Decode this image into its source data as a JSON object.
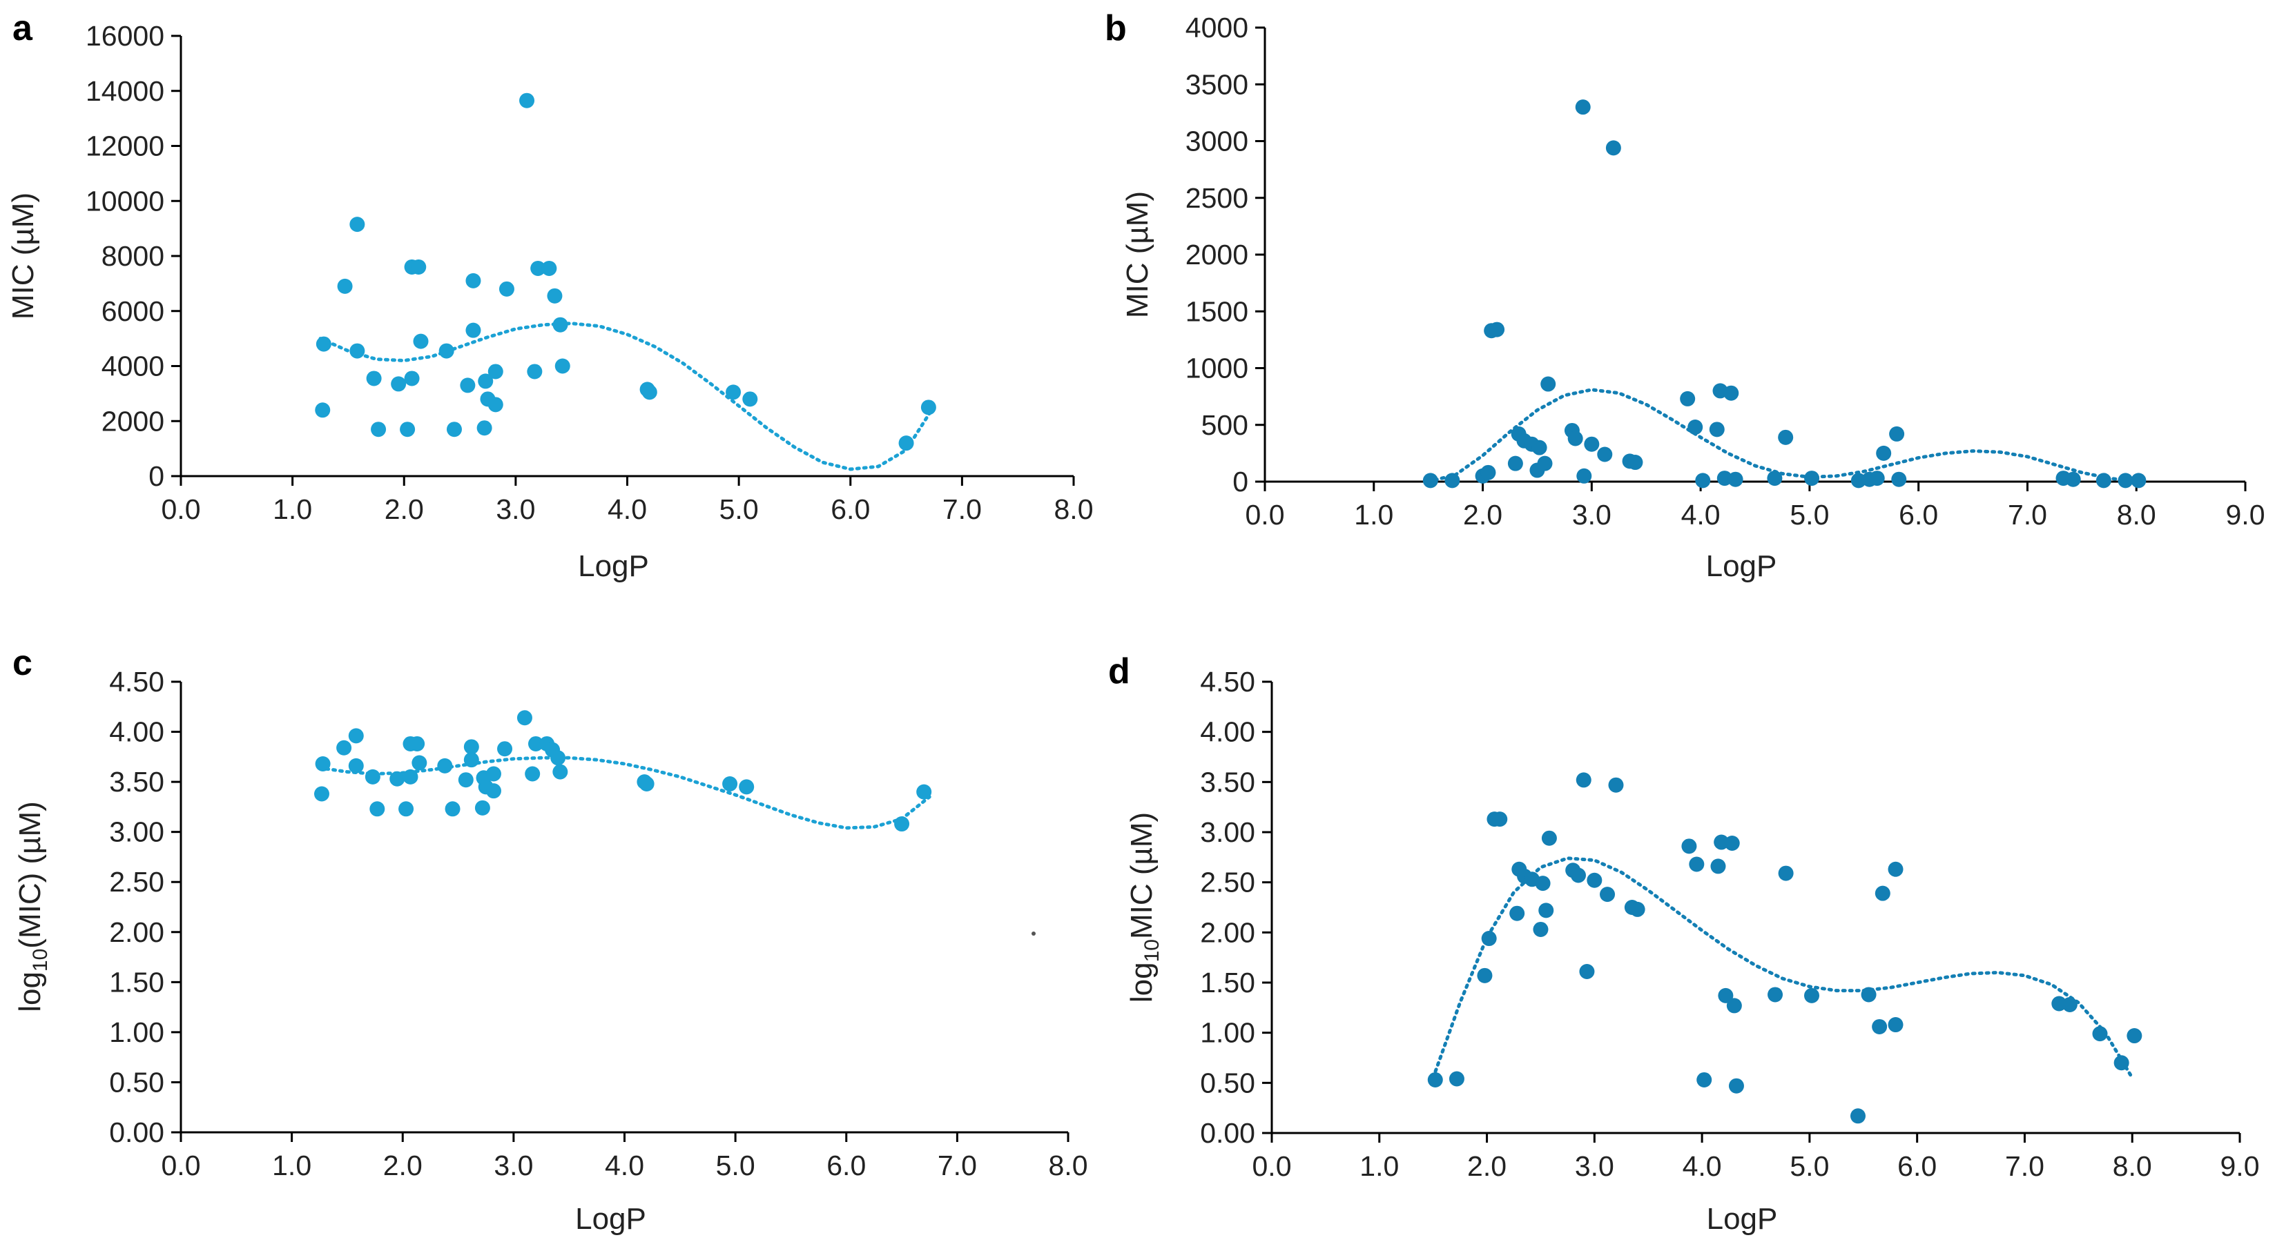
{
  "figure": {
    "colors": {
      "points_ac": "#1ba1d4",
      "points_bd": "#137fb4",
      "axis": "#000000"
    }
  },
  "chart_data": [
    {
      "panel": "a",
      "type": "scatter",
      "xlabel": "LogP",
      "ylabel": "MIC (µM)",
      "xlim": [
        0,
        8
      ],
      "ylim": [
        0,
        16000
      ],
      "xticks": [
        0,
        1,
        2,
        3,
        4,
        5,
        6,
        7,
        8
      ],
      "yticks": [
        0,
        2000,
        4000,
        6000,
        8000,
        10000,
        12000,
        14000,
        16000
      ],
      "xtick_labels": [
        "0.0",
        "1.0",
        "2.0",
        "3.0",
        "4.0",
        "5.0",
        "6.0",
        "7.0",
        "8.0"
      ],
      "ytick_labels": [
        "0",
        "2000",
        "4000",
        "6000",
        "8000",
        "10000",
        "12000",
        "14000",
        "16000"
      ],
      "points": [
        [
          1.28,
          4800
        ],
        [
          1.27,
          2400
        ],
        [
          1.47,
          6900
        ],
        [
          1.58,
          9150
        ],
        [
          1.58,
          4550
        ],
        [
          1.73,
          3550
        ],
        [
          1.77,
          1700
        ],
        [
          1.95,
          3350
        ],
        [
          2.03,
          1700
        ],
        [
          2.07,
          3550
        ],
        [
          2.07,
          7600
        ],
        [
          2.13,
          7600
        ],
        [
          2.15,
          4900
        ],
        [
          2.38,
          4550
        ],
        [
          2.45,
          1700
        ],
        [
          2.57,
          3300
        ],
        [
          2.62,
          7100
        ],
        [
          2.62,
          5300
        ],
        [
          2.72,
          1750
        ],
        [
          2.73,
          3450
        ],
        [
          2.75,
          2800
        ],
        [
          2.82,
          2600
        ],
        [
          2.82,
          3800
        ],
        [
          2.92,
          6800
        ],
        [
          3.1,
          13650
        ],
        [
          3.17,
          3800
        ],
        [
          3.2,
          7550
        ],
        [
          3.3,
          7550
        ],
        [
          3.35,
          6550
        ],
        [
          3.4,
          5500
        ],
        [
          3.42,
          4000
        ],
        [
          4.18,
          3150
        ],
        [
          4.2,
          3050
        ],
        [
          4.95,
          3050
        ],
        [
          5.1,
          2800
        ],
        [
          6.5,
          1200
        ],
        [
          6.7,
          2500
        ]
      ],
      "trendline": {
        "type": "polynomial",
        "x": [
          1.25,
          1.5,
          1.75,
          2.0,
          2.25,
          2.5,
          2.75,
          3.0,
          3.25,
          3.5,
          3.75,
          4.0,
          4.25,
          4.5,
          4.75,
          5.0,
          5.25,
          5.5,
          5.75,
          6.0,
          6.25,
          6.5,
          6.75
        ],
        "y": [
          5000,
          4550,
          4250,
          4200,
          4350,
          4700,
          5050,
          5350,
          5500,
          5550,
          5450,
          5150,
          4700,
          4100,
          3350,
          2550,
          1750,
          1050,
          500,
          250,
          350,
          950,
          2550
        ]
      }
    },
    {
      "panel": "b",
      "type": "scatter",
      "xlabel": "LogP",
      "ylabel": "MIC (µM)",
      "xlim": [
        0,
        9
      ],
      "ylim": [
        0,
        4000
      ],
      "xticks": [
        0,
        1,
        2,
        3,
        4,
        5,
        6,
        7,
        8,
        9
      ],
      "yticks": [
        0,
        500,
        1000,
        1500,
        2000,
        2500,
        3000,
        3500,
        4000
      ],
      "xtick_labels": [
        "0.0",
        "1.0",
        "2.0",
        "3.0",
        "4.0",
        "5.0",
        "6.0",
        "7.0",
        "8.0",
        "9.0"
      ],
      "ytick_labels": [
        "0",
        "500",
        "1000",
        "1500",
        "2000",
        "2500",
        "3000",
        "3500",
        "4000"
      ],
      "points": [
        [
          1.52,
          10
        ],
        [
          1.72,
          10
        ],
        [
          2.0,
          50
        ],
        [
          2.05,
          80
        ],
        [
          2.08,
          1330
        ],
        [
          2.13,
          1340
        ],
        [
          2.3,
          160
        ],
        [
          2.33,
          420
        ],
        [
          2.38,
          360
        ],
        [
          2.45,
          330
        ],
        [
          2.5,
          100
        ],
        [
          2.52,
          300
        ],
        [
          2.57,
          160
        ],
        [
          2.6,
          860
        ],
        [
          2.82,
          450
        ],
        [
          2.85,
          380
        ],
        [
          2.92,
          3300
        ],
        [
          2.93,
          50
        ],
        [
          3.0,
          330
        ],
        [
          3.12,
          240
        ],
        [
          3.2,
          2940
        ],
        [
          3.35,
          180
        ],
        [
          3.4,
          170
        ],
        [
          3.88,
          730
        ],
        [
          3.95,
          480
        ],
        [
          4.02,
          10
        ],
        [
          4.15,
          460
        ],
        [
          4.18,
          800
        ],
        [
          4.22,
          30
        ],
        [
          4.28,
          780
        ],
        [
          4.32,
          20
        ],
        [
          4.68,
          30
        ],
        [
          4.78,
          390
        ],
        [
          5.02,
          30
        ],
        [
          5.45,
          10
        ],
        [
          5.55,
          20
        ],
        [
          5.62,
          30
        ],
        [
          5.68,
          250
        ],
        [
          5.8,
          420
        ],
        [
          5.82,
          20
        ],
        [
          7.33,
          30
        ],
        [
          7.42,
          20
        ],
        [
          7.7,
          10
        ],
        [
          7.9,
          10
        ],
        [
          8.02,
          10
        ]
      ],
      "trendline": {
        "type": "polynomial",
        "x": [
          1.5,
          1.75,
          2.0,
          2.25,
          2.5,
          2.75,
          3.0,
          3.25,
          3.5,
          3.75,
          4.0,
          4.25,
          4.5,
          4.75,
          5.0,
          5.25,
          5.5,
          5.75,
          6.0,
          6.25,
          6.5,
          6.75,
          7.0,
          7.25,
          7.5,
          7.75,
          8.0
        ],
        "y": [
          0,
          60,
          230,
          440,
          630,
          760,
          810,
          780,
          680,
          540,
          390,
          250,
          140,
          70,
          40,
          50,
          90,
          150,
          210,
          250,
          270,
          260,
          220,
          150,
          80,
          30,
          0
        ]
      }
    },
    {
      "panel": "c",
      "type": "scatter",
      "xlabel": "LogP",
      "ylabel": "log10(MIC) (µM)",
      "xlim": [
        0,
        8
      ],
      "ylim": [
        0,
        4.5
      ],
      "xticks": [
        0,
        1,
        2,
        3,
        4,
        5,
        6,
        7,
        8
      ],
      "yticks": [
        0,
        0.5,
        1.0,
        1.5,
        2.0,
        2.5,
        3.0,
        3.5,
        4.0,
        4.5
      ],
      "xtick_labels": [
        "0.0",
        "1.0",
        "2.0",
        "3.0",
        "4.0",
        "5.0",
        "6.0",
        "7.0",
        "8.0"
      ],
      "ytick_labels": [
        "0.00",
        "0.50",
        "1.00",
        "1.50",
        "2.00",
        "2.50",
        "3.00",
        "3.50",
        "4.00",
        "4.50"
      ],
      "points": [
        [
          1.28,
          3.68
        ],
        [
          1.27,
          3.38
        ],
        [
          1.47,
          3.84
        ],
        [
          1.58,
          3.96
        ],
        [
          1.58,
          3.66
        ],
        [
          1.73,
          3.55
        ],
        [
          1.77,
          3.23
        ],
        [
          1.95,
          3.53
        ],
        [
          2.03,
          3.23
        ],
        [
          2.07,
          3.55
        ],
        [
          2.07,
          3.88
        ],
        [
          2.13,
          3.88
        ],
        [
          2.15,
          3.69
        ],
        [
          2.38,
          3.66
        ],
        [
          2.45,
          3.23
        ],
        [
          2.57,
          3.52
        ],
        [
          2.62,
          3.85
        ],
        [
          2.62,
          3.72
        ],
        [
          2.72,
          3.24
        ],
        [
          2.73,
          3.54
        ],
        [
          2.75,
          3.45
        ],
        [
          2.82,
          3.41
        ],
        [
          2.82,
          3.58
        ],
        [
          2.92,
          3.83
        ],
        [
          3.1,
          4.14
        ],
        [
          3.17,
          3.58
        ],
        [
          3.2,
          3.88
        ],
        [
          3.3,
          3.88
        ],
        [
          3.35,
          3.82
        ],
        [
          3.4,
          3.74
        ],
        [
          3.42,
          3.6
        ],
        [
          4.18,
          3.5
        ],
        [
          4.2,
          3.48
        ],
        [
          4.95,
          3.48
        ],
        [
          5.1,
          3.45
        ],
        [
          6.5,
          3.08
        ],
        [
          6.7,
          3.4
        ]
      ],
      "trendline": {
        "type": "polynomial",
        "x": [
          1.25,
          1.5,
          1.75,
          2.0,
          2.25,
          2.5,
          2.75,
          3.0,
          3.25,
          3.5,
          3.75,
          4.0,
          4.25,
          4.5,
          4.75,
          5.0,
          5.25,
          5.5,
          5.75,
          6.0,
          6.25,
          6.5,
          6.75
        ],
        "y": [
          3.64,
          3.6,
          3.58,
          3.59,
          3.62,
          3.66,
          3.7,
          3.73,
          3.74,
          3.74,
          3.72,
          3.68,
          3.62,
          3.55,
          3.46,
          3.37,
          3.27,
          3.17,
          3.09,
          3.04,
          3.05,
          3.13,
          3.35
        ]
      }
    },
    {
      "panel": "d",
      "type": "scatter",
      "xlabel": "LogP",
      "ylabel": "log10MIC (µM)",
      "xlim": [
        0,
        9
      ],
      "ylim": [
        0,
        4.5
      ],
      "xticks": [
        0,
        1,
        2,
        3,
        4,
        5,
        6,
        7,
        8,
        9
      ],
      "yticks": [
        0,
        0.5,
        1.0,
        1.5,
        2.0,
        2.5,
        3.0,
        3.5,
        4.0,
        4.5
      ],
      "xtick_labels": [
        "0.0",
        "1.0",
        "2.0",
        "3.0",
        "4.0",
        "5.0",
        "6.0",
        "7.0",
        "8.0",
        "9.0"
      ],
      "ytick_labels": [
        "0.00",
        "0.50",
        "1.00",
        "1.50",
        "2.00",
        "2.50",
        "3.00",
        "3.50",
        "4.00",
        "4.50"
      ],
      "points": [
        [
          1.52,
          0.53
        ],
        [
          1.72,
          0.54
        ],
        [
          1.98,
          1.57
        ],
        [
          2.02,
          1.94
        ],
        [
          2.07,
          3.13
        ],
        [
          2.12,
          3.13
        ],
        [
          2.28,
          2.19
        ],
        [
          2.3,
          2.63
        ],
        [
          2.35,
          2.56
        ],
        [
          2.42,
          2.53
        ],
        [
          2.5,
          2.03
        ],
        [
          2.52,
          2.49
        ],
        [
          2.55,
          2.22
        ],
        [
          2.58,
          2.94
        ],
        [
          2.8,
          2.62
        ],
        [
          2.85,
          2.57
        ],
        [
          2.9,
          3.52
        ],
        [
          2.93,
          1.61
        ],
        [
          3.0,
          2.52
        ],
        [
          3.12,
          2.38
        ],
        [
          3.2,
          3.47
        ],
        [
          3.35,
          2.25
        ],
        [
          3.4,
          2.23
        ],
        [
          3.88,
          2.86
        ],
        [
          3.95,
          2.68
        ],
        [
          4.02,
          0.53
        ],
        [
          4.15,
          2.66
        ],
        [
          4.18,
          2.9
        ],
        [
          4.22,
          1.37
        ],
        [
          4.28,
          2.89
        ],
        [
          4.3,
          1.27
        ],
        [
          4.32,
          0.47
        ],
        [
          4.68,
          1.38
        ],
        [
          4.78,
          2.59
        ],
        [
          5.02,
          1.37
        ],
        [
          5.45,
          0.17
        ],
        [
          5.55,
          1.38
        ],
        [
          5.65,
          1.06
        ],
        [
          5.68,
          2.39
        ],
        [
          5.8,
          2.63
        ],
        [
          5.8,
          1.08
        ],
        [
          7.32,
          1.29
        ],
        [
          7.42,
          1.28
        ],
        [
          7.7,
          0.99
        ],
        [
          7.9,
          0.7
        ],
        [
          8.02,
          0.97
        ]
      ],
      "trendline": {
        "type": "polynomial",
        "x": [
          1.5,
          1.75,
          2.0,
          2.25,
          2.5,
          2.75,
          3.0,
          3.25,
          3.5,
          3.75,
          4.0,
          4.25,
          4.5,
          4.75,
          5.0,
          5.25,
          5.5,
          5.75,
          6.0,
          6.25,
          6.5,
          6.75,
          7.0,
          7.25,
          7.5,
          7.75,
          8.0
        ],
        "y": [
          0.55,
          1.3,
          1.95,
          2.4,
          2.65,
          2.74,
          2.72,
          2.6,
          2.42,
          2.22,
          2.02,
          1.83,
          1.67,
          1.54,
          1.46,
          1.42,
          1.42,
          1.45,
          1.5,
          1.55,
          1.59,
          1.6,
          1.57,
          1.48,
          1.3,
          1.0,
          0.55
        ]
      }
    }
  ]
}
